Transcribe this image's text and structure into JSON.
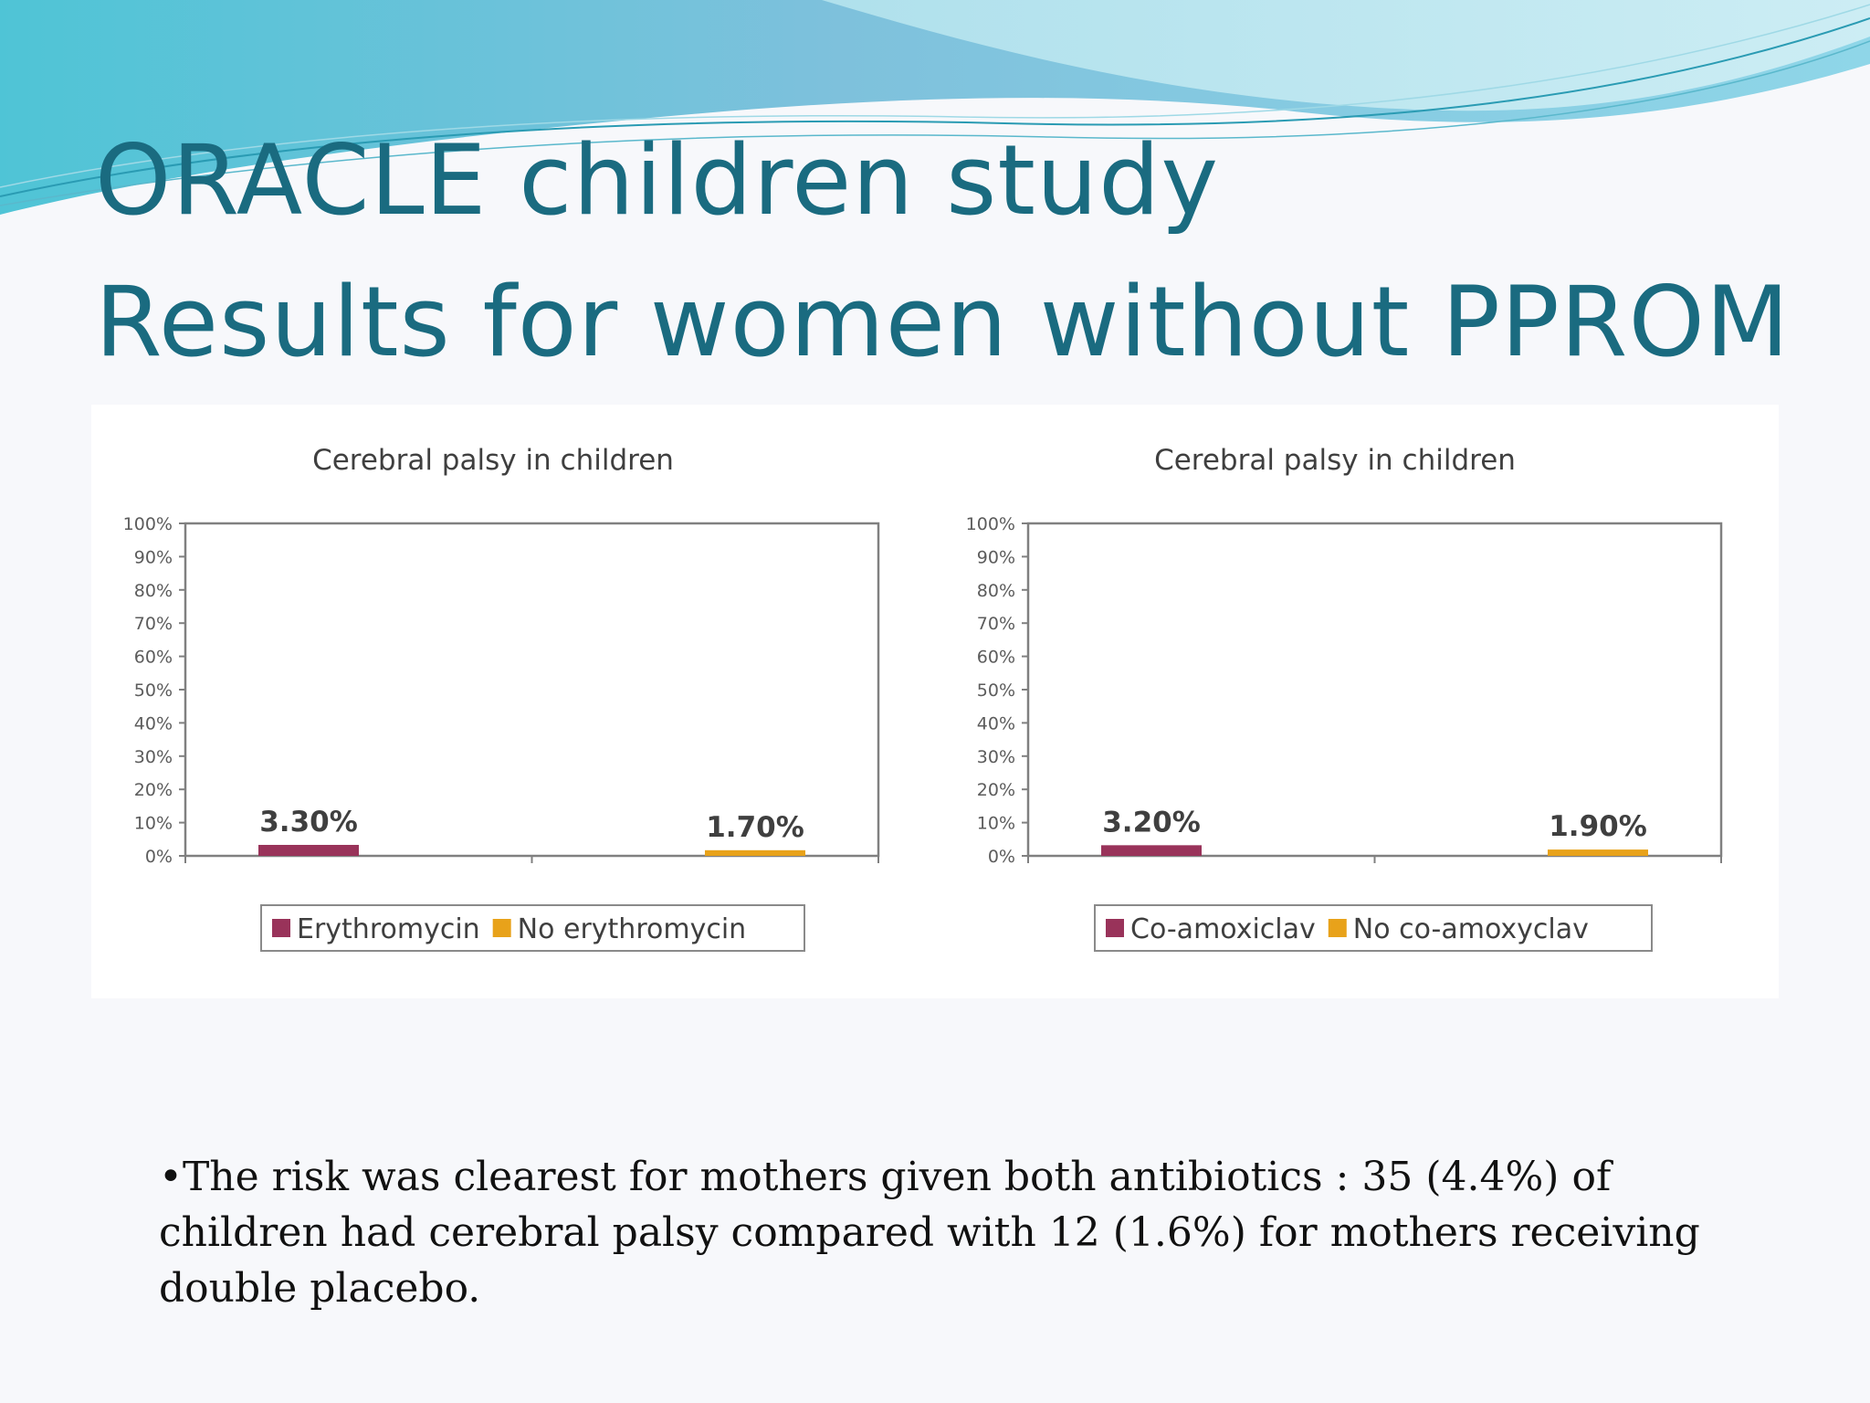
{
  "slide": {
    "title_line1": "ORACLE children study",
    "title_line2": "Results for women without PPROM",
    "bullet": "•The risk was clearest for mothers given both antibiotics : 35 (4.4%) of children had cerebral palsy  compared with 12 (1.6%) for mothers receiving double placebo."
  },
  "colors": {
    "title": "#1a6b80",
    "series_treatment": "#99335a",
    "series_control": "#e8a21a",
    "axis": "#808080"
  },
  "chart_data": [
    {
      "type": "bar",
      "title": "Cerebral palsy in children",
      "categories": [
        "Erythromycin",
        "No erythromycin"
      ],
      "values": [
        3.3,
        1.7
      ],
      "value_labels": [
        "3.30%",
        "1.70%"
      ],
      "legend": [
        "Erythromycin",
        "No erythromycin"
      ],
      "legend_position": "bottom",
      "ylim": [
        0,
        100
      ],
      "yticks": [
        "0%",
        "10%",
        "20%",
        "30%",
        "40%",
        "50%",
        "60%",
        "70%",
        "80%",
        "90%",
        "100%"
      ],
      "xlabel": "",
      "ylabel": "",
      "grid": false
    },
    {
      "type": "bar",
      "title": "Cerebral palsy in children",
      "categories": [
        "Co-amoxiclav",
        "No co-amoxyclav"
      ],
      "values": [
        3.2,
        1.9
      ],
      "value_labels": [
        "3.20%",
        "1.90%"
      ],
      "legend": [
        "Co-amoxiclav",
        "No co-amoxyclav"
      ],
      "legend_position": "bottom",
      "ylim": [
        0,
        100
      ],
      "yticks": [
        "0%",
        "10%",
        "20%",
        "30%",
        "40%",
        "50%",
        "60%",
        "70%",
        "80%",
        "90%",
        "100%"
      ],
      "xlabel": "",
      "ylabel": "",
      "grid": false
    }
  ]
}
